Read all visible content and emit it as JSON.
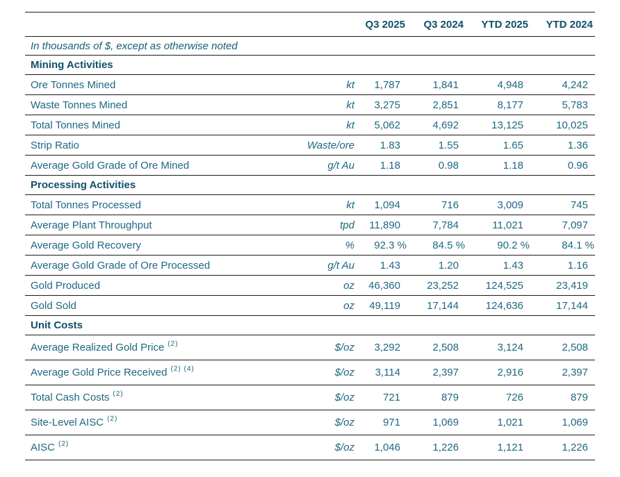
{
  "colors": {
    "text": "#1e6781",
    "heading": "#10506a",
    "border": "#1a1a1a",
    "background": "#ffffff"
  },
  "table": {
    "note": "In thousands of $, except as otherwise noted",
    "columns": [
      "Q3 2025",
      "Q3 2024",
      "YTD 2025",
      "YTD 2024"
    ],
    "sections": [
      {
        "title": "Mining Activities",
        "rows": [
          {
            "label": "Ore Tonnes Mined",
            "sup": "",
            "unit": "kt",
            "values": [
              "1,787",
              "1,841",
              "4,948",
              "4,242"
            ]
          },
          {
            "label": "Waste Tonnes Mined",
            "sup": "",
            "unit": "kt",
            "values": [
              "3,275",
              "2,851",
              "8,177",
              "5,783"
            ]
          },
          {
            "label": "Total Tonnes Mined",
            "sup": "",
            "unit": "kt",
            "values": [
              "5,062",
              "4,692",
              "13,125",
              "10,025"
            ]
          },
          {
            "label": "Strip Ratio",
            "sup": "",
            "unit": "Waste/ore",
            "values": [
              "1.83",
              "1.55",
              "1.65",
              "1.36"
            ]
          },
          {
            "label": "Average Gold Grade of Ore Mined",
            "sup": "",
            "unit": "g/t Au",
            "values": [
              "1.18",
              "0.98",
              "1.18",
              "0.96"
            ]
          }
        ]
      },
      {
        "title": "Processing Activities",
        "rows": [
          {
            "label": "Total Tonnes Processed",
            "sup": "",
            "unit": "kt",
            "values": [
              "1,094",
              "716",
              "3,009",
              "745"
            ]
          },
          {
            "label": "Average Plant Throughput",
            "sup": "",
            "unit": "tpd",
            "values": [
              "11,890",
              "7,784",
              "11,021",
              "7,097"
            ]
          },
          {
            "label": "Average Gold Recovery",
            "sup": "",
            "unit": "%",
            "values": [
              "92.3 %",
              "84.5 %",
              "90.2 %",
              "84.1 %"
            ]
          },
          {
            "label": "Average Gold Grade of Ore Processed",
            "sup": "",
            "unit": "g/t Au",
            "values": [
              "1.43",
              "1.20",
              "1.43",
              "1.16"
            ]
          },
          {
            "label": "Gold Produced",
            "sup": "",
            "unit": "oz",
            "values": [
              "46,360",
              "23,252",
              "124,525",
              "23,419"
            ]
          },
          {
            "label": "Gold Sold",
            "sup": "",
            "unit": "oz",
            "values": [
              "49,119",
              "17,144",
              "124,636",
              "17,144"
            ]
          }
        ]
      },
      {
        "title": "Unit Costs",
        "rows": [
          {
            "label": "Average Realized Gold Price",
            "sup": "(2)",
            "unit": "$/oz",
            "values": [
              "3,292",
              "2,508",
              "3,124",
              "2,508"
            ]
          },
          {
            "label": "Average Gold Price Received",
            "sup": "(2) (4)",
            "unit": "$/oz",
            "values": [
              "3,114",
              "2,397",
              "2,916",
              "2,397"
            ]
          },
          {
            "label": "Total Cash Costs",
            "sup": "(2)",
            "unit": "$/oz",
            "values": [
              "721",
              "879",
              "726",
              "879"
            ]
          },
          {
            "label": "Site-Level AISC",
            "sup": "(2)",
            "unit": "$/oz",
            "values": [
              "971",
              "1,069",
              "1,021",
              "1,069"
            ]
          },
          {
            "label": "AISC",
            "sup": "(2)",
            "unit": "$/oz",
            "values": [
              "1,046",
              "1,226",
              "1,121",
              "1,226"
            ]
          }
        ]
      }
    ]
  }
}
